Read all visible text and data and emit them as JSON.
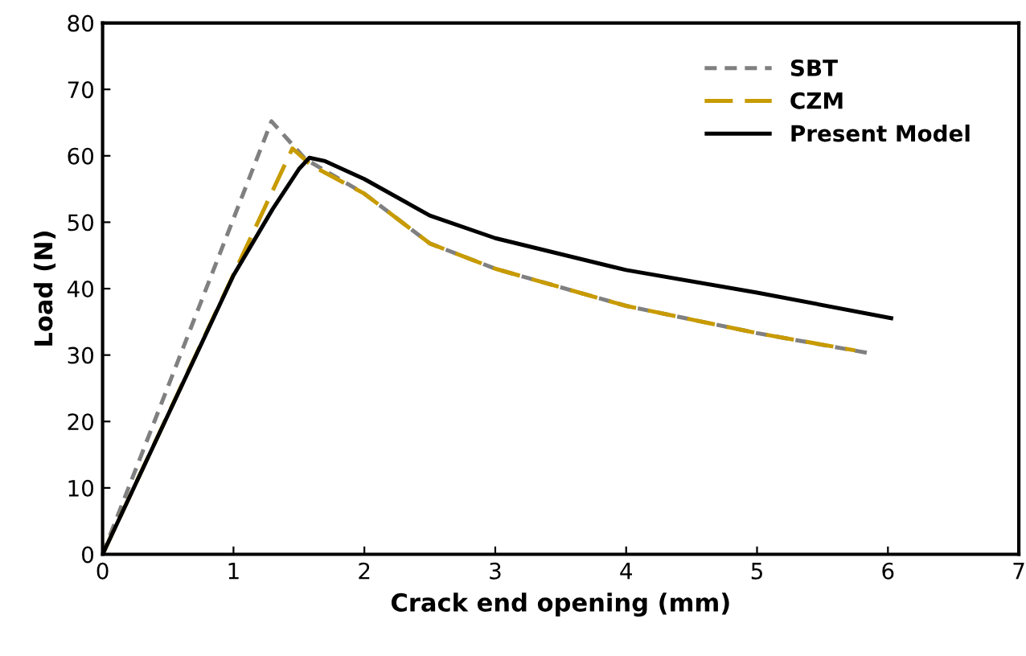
{
  "chart_data": {
    "type": "line",
    "xlabel": "Crack end opening (mm)",
    "ylabel": "Load (N)",
    "xlim": [
      0,
      7
    ],
    "xticks": [
      0,
      1,
      2,
      3,
      4,
      5,
      6,
      7
    ],
    "ylim": [
      0,
      80
    ],
    "yticks": [
      0,
      10,
      20,
      30,
      40,
      50,
      60,
      70,
      80
    ],
    "grid": false,
    "legend": "top right",
    "series": [
      {
        "name": "SBT",
        "color": "#808080",
        "line_style": "dotted",
        "x": [
          0,
          1.29,
          1.55,
          2,
          2.5,
          3,
          4,
          5,
          5.88
        ],
        "values": [
          0,
          65.2,
          59.5,
          54.3,
          46.8,
          43.0,
          37.4,
          33.3,
          30.2
        ]
      },
      {
        "name": "CZM",
        "color": "#c89b00",
        "line_style": "dashed",
        "x": [
          0,
          1.45,
          1.6,
          2,
          2.5,
          3,
          4,
          5,
          5.75
        ],
        "values": [
          0,
          61.1,
          58.5,
          54.3,
          46.8,
          43.0,
          37.4,
          33.3,
          30.7
        ]
      },
      {
        "name": "Present Model",
        "color": "#000000",
        "line_style": "solid",
        "x": [
          0,
          0.5,
          1.0,
          1.3,
          1.5,
          1.58,
          1.7,
          2,
          2.5,
          3,
          4,
          5,
          6.04
        ],
        "values": [
          0,
          21,
          42,
          52,
          58,
          59.7,
          59.2,
          56.5,
          51.0,
          47.6,
          42.8,
          39.4,
          35.5
        ]
      }
    ]
  }
}
